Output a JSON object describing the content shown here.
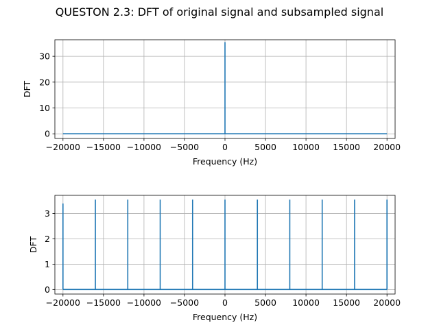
{
  "suptitle": "QUESTON 2.3: DFT of original signal and subsampled signal",
  "colors": {
    "line": "#1f77b4",
    "grid": "#b0b0b0",
    "axes": "#000000"
  },
  "chart_data": [
    {
      "type": "line",
      "title": "",
      "xlabel": "Frequency (Hz)",
      "ylabel": "DFT",
      "xlim": [
        -21000,
        21000
      ],
      "ylim": [
        -1.8,
        36.4
      ],
      "xticks": [
        -20000,
        -15000,
        -10000,
        -5000,
        0,
        5000,
        10000,
        15000,
        20000
      ],
      "xtick_labels": [
        "−20000",
        "−15000",
        "−10000",
        "−5000",
        "0",
        "5000",
        "10000",
        "15000",
        "20000"
      ],
      "yticks": [
        0,
        10,
        20,
        30
      ],
      "ytick_labels": [
        "0",
        "10",
        "20",
        "30"
      ],
      "grid": true,
      "baseline": 0,
      "x": [
        -20000,
        20000
      ],
      "peaks": [
        {
          "x": 0,
          "y": 35.5
        }
      ]
    },
    {
      "type": "line",
      "title": "",
      "xlabel": "Frequency (Hz)",
      "ylabel": "DFT",
      "xlim": [
        -21000,
        21000
      ],
      "ylim": [
        -0.18,
        3.72
      ],
      "xticks": [
        -20000,
        -15000,
        -10000,
        -5000,
        0,
        5000,
        10000,
        15000,
        20000
      ],
      "xtick_labels": [
        "−20000",
        "−15000",
        "−10000",
        "−5000",
        "0",
        "5000",
        "10000",
        "15000",
        "20000"
      ],
      "yticks": [
        0,
        1,
        2,
        3
      ],
      "ytick_labels": [
        "0",
        "1",
        "2",
        "3"
      ],
      "grid": true,
      "baseline": 0,
      "x": [
        -20000,
        20000
      ],
      "peaks": [
        {
          "x": -20000,
          "y": 3.4
        },
        {
          "x": -16000,
          "y": 3.55
        },
        {
          "x": -12000,
          "y": 3.55
        },
        {
          "x": -8000,
          "y": 3.55
        },
        {
          "x": -4000,
          "y": 3.55
        },
        {
          "x": 0,
          "y": 3.55
        },
        {
          "x": 4000,
          "y": 3.55
        },
        {
          "x": 8000,
          "y": 3.55
        },
        {
          "x": 12000,
          "y": 3.55
        },
        {
          "x": 16000,
          "y": 3.55
        },
        {
          "x": 20000,
          "y": 3.55
        }
      ]
    }
  ]
}
